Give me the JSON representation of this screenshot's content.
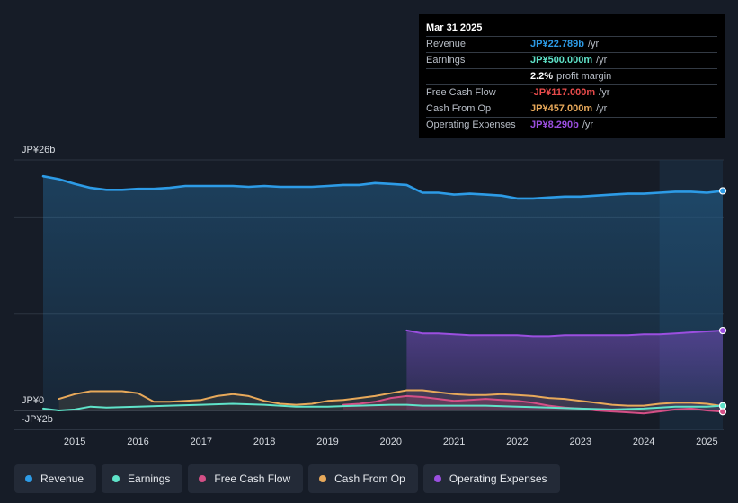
{
  "chart_data": {
    "type": "line",
    "currency_prefix": "JP¥",
    "y_labels": {
      "top": "JP¥26b",
      "zero": "JP¥0",
      "bottom": "-JP¥2b"
    },
    "ylim": [
      -2,
      26
    ],
    "xlim": [
      2014.5,
      2025.25
    ],
    "x_ticks": [
      "2015",
      "2016",
      "2017",
      "2018",
      "2019",
      "2020",
      "2021",
      "2022",
      "2023",
      "2024",
      "2025"
    ],
    "grid": true,
    "legend_position": "bottom",
    "forecast_shading_start": 2024.25,
    "series": [
      {
        "name": "Revenue",
        "color": "#2d9be6",
        "filled": true,
        "points": [
          [
            2014.5,
            24.3
          ],
          [
            2014.75,
            24.0
          ],
          [
            2015.0,
            23.5
          ],
          [
            2015.25,
            23.1
          ],
          [
            2015.5,
            22.9
          ],
          [
            2015.75,
            22.9
          ],
          [
            2016.0,
            23.0
          ],
          [
            2016.25,
            23.0
          ],
          [
            2016.5,
            23.1
          ],
          [
            2016.75,
            23.3
          ],
          [
            2017.0,
            23.3
          ],
          [
            2017.25,
            23.3
          ],
          [
            2017.5,
            23.3
          ],
          [
            2017.75,
            23.2
          ],
          [
            2018.0,
            23.3
          ],
          [
            2018.25,
            23.2
          ],
          [
            2018.5,
            23.2
          ],
          [
            2018.75,
            23.2
          ],
          [
            2019.0,
            23.3
          ],
          [
            2019.25,
            23.4
          ],
          [
            2019.5,
            23.4
          ],
          [
            2019.75,
            23.6
          ],
          [
            2020.0,
            23.5
          ],
          [
            2020.25,
            23.4
          ],
          [
            2020.5,
            22.6
          ],
          [
            2020.75,
            22.6
          ],
          [
            2021.0,
            22.4
          ],
          [
            2021.25,
            22.5
          ],
          [
            2021.5,
            22.4
          ],
          [
            2021.75,
            22.3
          ],
          [
            2022.0,
            22.0
          ],
          [
            2022.25,
            22.0
          ],
          [
            2022.5,
            22.1
          ],
          [
            2022.75,
            22.2
          ],
          [
            2023.0,
            22.2
          ],
          [
            2023.25,
            22.3
          ],
          [
            2023.5,
            22.4
          ],
          [
            2023.75,
            22.5
          ],
          [
            2024.0,
            22.5
          ],
          [
            2024.25,
            22.6
          ],
          [
            2024.5,
            22.7
          ],
          [
            2024.75,
            22.7
          ],
          [
            2025.0,
            22.6
          ],
          [
            2025.25,
            22.789
          ]
        ]
      },
      {
        "name": "Earnings",
        "color": "#5fe3c9",
        "filled": false,
        "points": [
          [
            2014.5,
            0.2
          ],
          [
            2014.75,
            0.0
          ],
          [
            2015.0,
            0.1
          ],
          [
            2015.25,
            0.4
          ],
          [
            2015.5,
            0.3
          ],
          [
            2016.0,
            0.4
          ],
          [
            2016.5,
            0.5
          ],
          [
            2017.0,
            0.6
          ],
          [
            2017.5,
            0.7
          ],
          [
            2018.0,
            0.6
          ],
          [
            2018.5,
            0.4
          ],
          [
            2019.0,
            0.4
          ],
          [
            2019.5,
            0.5
          ],
          [
            2020.0,
            0.6
          ],
          [
            2020.25,
            0.6
          ],
          [
            2020.5,
            0.5
          ],
          [
            2021.0,
            0.5
          ],
          [
            2021.5,
            0.5
          ],
          [
            2022.0,
            0.4
          ],
          [
            2022.5,
            0.3
          ],
          [
            2023.0,
            0.2
          ],
          [
            2023.5,
            0.1
          ],
          [
            2024.0,
            0.2
          ],
          [
            2024.5,
            0.4
          ],
          [
            2025.0,
            0.4
          ],
          [
            2025.25,
            0.5
          ]
        ]
      },
      {
        "name": "Free Cash Flow",
        "color": "#d44f86",
        "filled": true,
        "points": [
          [
            2019.25,
            0.6
          ],
          [
            2019.5,
            0.7
          ],
          [
            2019.75,
            0.9
          ],
          [
            2020.0,
            1.3
          ],
          [
            2020.25,
            1.5
          ],
          [
            2020.5,
            1.4
          ],
          [
            2020.75,
            1.2
          ],
          [
            2021.0,
            1.0
          ],
          [
            2021.25,
            1.1
          ],
          [
            2021.5,
            1.2
          ],
          [
            2021.75,
            1.1
          ],
          [
            2022.0,
            1.0
          ],
          [
            2022.25,
            0.8
          ],
          [
            2022.5,
            0.5
          ],
          [
            2022.75,
            0.3
          ],
          [
            2023.0,
            0.2
          ],
          [
            2023.25,
            0.0
          ],
          [
            2023.5,
            -0.1
          ],
          [
            2023.75,
            -0.2
          ],
          [
            2024.0,
            -0.3
          ],
          [
            2024.25,
            -0.1
          ],
          [
            2024.5,
            0.1
          ],
          [
            2024.75,
            0.2
          ],
          [
            2025.0,
            0.0
          ],
          [
            2025.25,
            -0.117
          ]
        ]
      },
      {
        "name": "Cash From Op",
        "color": "#e8a95a",
        "filled": true,
        "points": [
          [
            2014.75,
            1.2
          ],
          [
            2015.0,
            1.7
          ],
          [
            2015.25,
            2.0
          ],
          [
            2015.5,
            2.0
          ],
          [
            2015.75,
            2.0
          ],
          [
            2016.0,
            1.8
          ],
          [
            2016.25,
            0.9
          ],
          [
            2016.5,
            0.9
          ],
          [
            2016.75,
            1.0
          ],
          [
            2017.0,
            1.1
          ],
          [
            2017.25,
            1.5
          ],
          [
            2017.5,
            1.7
          ],
          [
            2017.75,
            1.5
          ],
          [
            2018.0,
            1.0
          ],
          [
            2018.25,
            0.7
          ],
          [
            2018.5,
            0.6
          ],
          [
            2018.75,
            0.7
          ],
          [
            2019.0,
            1.0
          ],
          [
            2019.25,
            1.1
          ],
          [
            2019.5,
            1.3
          ],
          [
            2019.75,
            1.5
          ],
          [
            2020.0,
            1.8
          ],
          [
            2020.25,
            2.1
          ],
          [
            2020.5,
            2.1
          ],
          [
            2020.75,
            1.9
          ],
          [
            2021.0,
            1.7
          ],
          [
            2021.25,
            1.6
          ],
          [
            2021.5,
            1.6
          ],
          [
            2021.75,
            1.7
          ],
          [
            2022.0,
            1.6
          ],
          [
            2022.25,
            1.5
          ],
          [
            2022.5,
            1.3
          ],
          [
            2022.75,
            1.2
          ],
          [
            2023.0,
            1.0
          ],
          [
            2023.25,
            0.8
          ],
          [
            2023.5,
            0.6
          ],
          [
            2023.75,
            0.5
          ],
          [
            2024.0,
            0.5
          ],
          [
            2024.25,
            0.7
          ],
          [
            2024.5,
            0.8
          ],
          [
            2024.75,
            0.8
          ],
          [
            2025.0,
            0.7
          ],
          [
            2025.25,
            0.457
          ]
        ]
      },
      {
        "name": "Operating Expenses",
        "color": "#9b4fe0",
        "filled": true,
        "points": [
          [
            2020.25,
            8.3
          ],
          [
            2020.5,
            8.0
          ],
          [
            2020.75,
            8.0
          ],
          [
            2021.0,
            7.9
          ],
          [
            2021.25,
            7.8
          ],
          [
            2021.5,
            7.8
          ],
          [
            2021.75,
            7.8
          ],
          [
            2022.0,
            7.8
          ],
          [
            2022.25,
            7.7
          ],
          [
            2022.5,
            7.7
          ],
          [
            2022.75,
            7.8
          ],
          [
            2023.0,
            7.8
          ],
          [
            2023.25,
            7.8
          ],
          [
            2023.5,
            7.8
          ],
          [
            2023.75,
            7.8
          ],
          [
            2024.0,
            7.9
          ],
          [
            2024.25,
            7.9
          ],
          [
            2024.5,
            8.0
          ],
          [
            2024.75,
            8.1
          ],
          [
            2025.0,
            8.2
          ],
          [
            2025.25,
            8.29
          ]
        ]
      }
    ]
  },
  "tooltip": {
    "date": "Mar 31 2025",
    "rows": [
      {
        "label": "Revenue",
        "value": "JP¥22.789b",
        "unit": "/yr",
        "color": "#2d9be6"
      },
      {
        "label": "Earnings",
        "value": "JP¥500.000m",
        "unit": "/yr",
        "color": "#5fe3c9"
      },
      {
        "label": "",
        "value": "2.2%",
        "unit": "profit margin",
        "color": "#ffffff"
      },
      {
        "label": "Free Cash Flow",
        "value": "-JP¥117.000m",
        "unit": "/yr",
        "color": "#e84b4b"
      },
      {
        "label": "Cash From Op",
        "value": "JP¥457.000m",
        "unit": "/yr",
        "color": "#e8a95a"
      },
      {
        "label": "Operating Expenses",
        "value": "JP¥8.290b",
        "unit": "/yr",
        "color": "#9b4fe0"
      }
    ]
  },
  "legend": [
    {
      "label": "Revenue",
      "color": "#2d9be6",
      "name": "revenue"
    },
    {
      "label": "Earnings",
      "color": "#5fe3c9",
      "name": "earnings"
    },
    {
      "label": "Free Cash Flow",
      "color": "#d44f86",
      "name": "free-cash-flow"
    },
    {
      "label": "Cash From Op",
      "color": "#e8a95a",
      "name": "cash-from-op"
    },
    {
      "label": "Operating Expenses",
      "color": "#9b4fe0",
      "name": "operating-expenses"
    }
  ]
}
